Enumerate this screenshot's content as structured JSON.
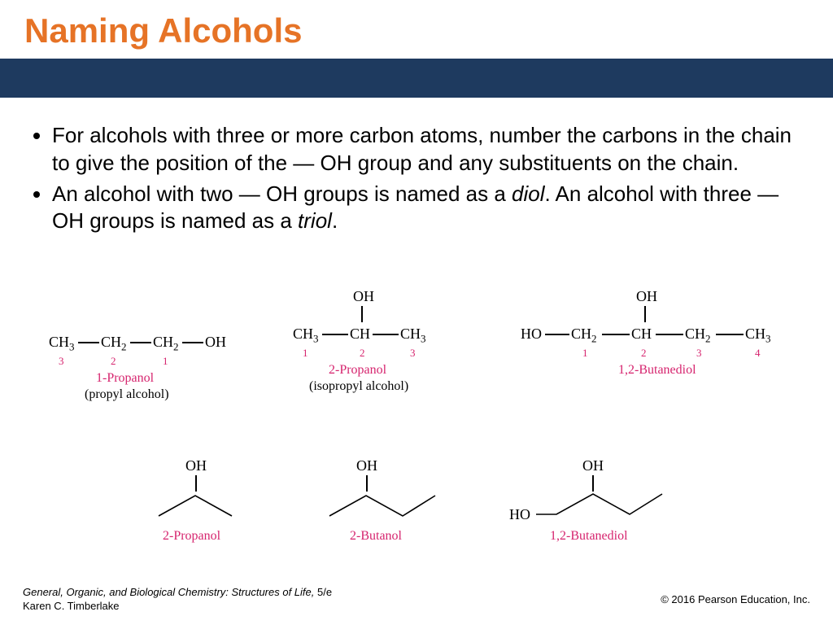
{
  "colors": {
    "title": "#e67326",
    "bar": "#1e3a5f",
    "number": "#d6246e",
    "name": "#d6246e"
  },
  "title": "Naming Alcohols",
  "bullets": [
    "For alcohols with three or more carbon atoms, number the carbons in the chain to give the position of the — OH group and any substituents on the chain.",
    "An alcohol with two — OH groups is named as a <span class=\"italic\">diol</span>. An alcohol with three — OH groups is named as a <span class=\"italic\">triol</span>."
  ],
  "row1": {
    "mol1": {
      "atoms": [
        "CH₃",
        "CH₂",
        "CH₂",
        "OH"
      ],
      "numbers": [
        "3",
        "2",
        "1"
      ],
      "name": "1-Propanol",
      "common": "(propyl alcohol)"
    },
    "mol2": {
      "atoms": [
        "CH₃",
        "CH",
        "CH₃"
      ],
      "top": "OH",
      "numbers": [
        "1",
        "2",
        "3"
      ],
      "name": "2-Propanol",
      "common": "(isopropyl alcohol)"
    },
    "mol3": {
      "atoms": [
        "HO",
        "CH₂",
        "CH",
        "CH₂",
        "CH₃"
      ],
      "top": "OH",
      "numbers": [
        "1",
        "2",
        "3",
        "4"
      ],
      "name": "1,2-Butanediol",
      "common": ""
    }
  },
  "row2": {
    "mol1": {
      "top": "OH",
      "name": "2-Propanol"
    },
    "mol2": {
      "top": "OH",
      "name": "2-Butanol"
    },
    "mol3": {
      "top": "OH",
      "left": "HO",
      "name": "1,2-Butanediol"
    }
  },
  "footer": {
    "book": "General, Organic, and Biological Chemistry: Structures of Life,",
    "edition": "5/e",
    "author": "Karen C. Timberlake",
    "copyright": "© 2016 Pearson Education, Inc."
  }
}
